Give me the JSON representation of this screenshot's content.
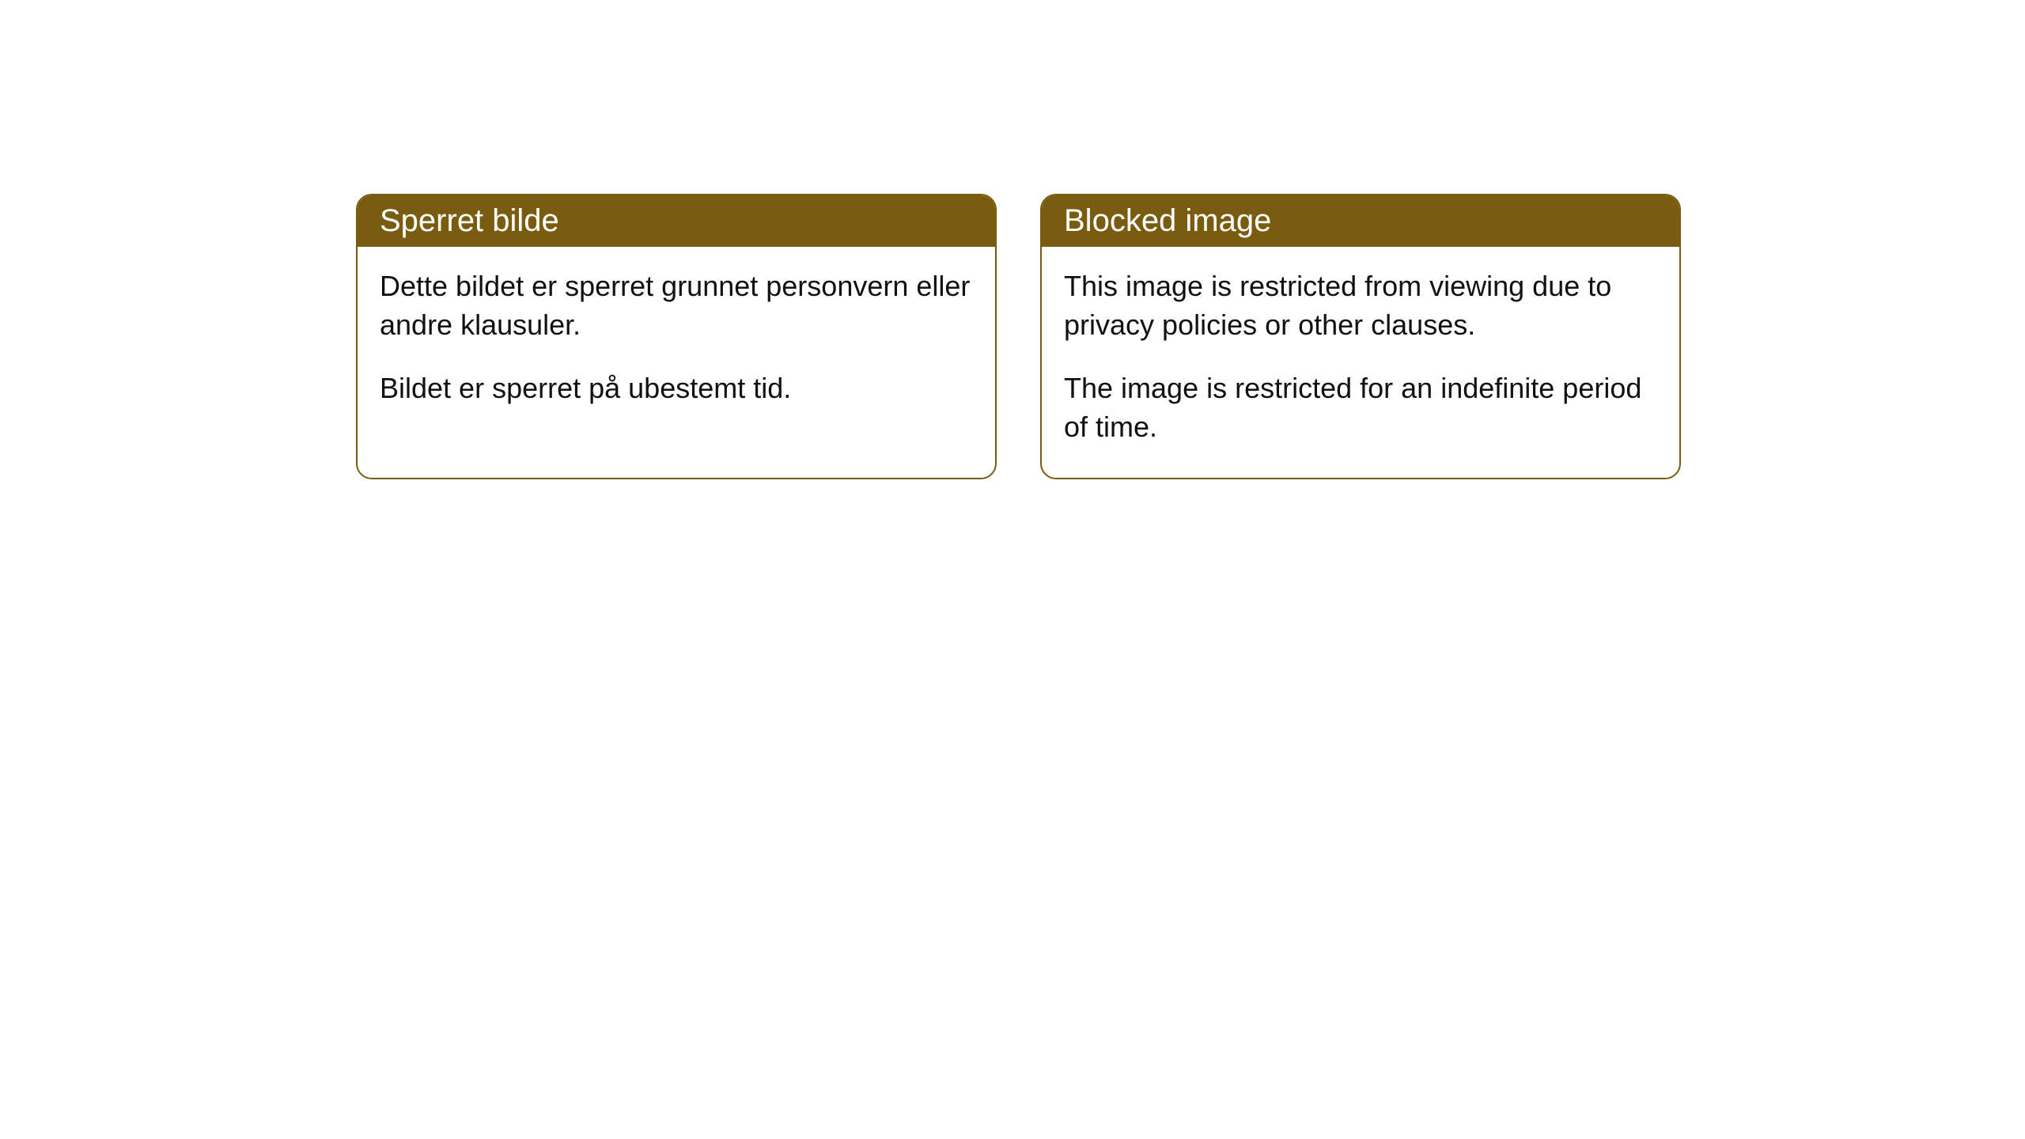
{
  "cards": [
    {
      "title": "Sperret bilde",
      "paragraph1": "Dette bildet er sperret grunnet personvern eller andre klausuler.",
      "paragraph2": "Bildet er sperret på ubestemt tid."
    },
    {
      "title": "Blocked image",
      "paragraph1": "This image is restricted from viewing due to privacy policies or other clauses.",
      "paragraph2": "The image is restricted for an indefinite period of time."
    }
  ],
  "styling": {
    "header_bg": "#7a5c10",
    "header_text": "#ffffff",
    "border_color": "#7a5c10",
    "body_bg": "#ffffff",
    "body_text": "#111111",
    "border_radius": 20,
    "title_fontsize": 40,
    "body_fontsize": 36
  }
}
